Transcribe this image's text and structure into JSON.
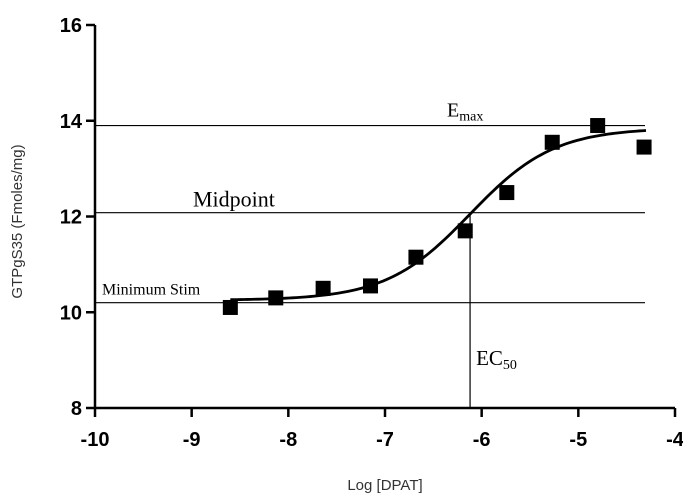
{
  "chart_data": {
    "type": "scatter",
    "xlabel": "Log [DPAT]",
    "ylabel": "GTPgS35 (Fmoles/mg)",
    "xlim": [
      -10,
      -4
    ],
    "ylim": [
      8,
      16
    ],
    "xticks": [
      -10,
      -9,
      -8,
      -7,
      -6,
      -5,
      -4
    ],
    "yticks": [
      8,
      10,
      12,
      14,
      16
    ],
    "grid": false,
    "points": [
      {
        "x": -8.6,
        "y": 10.1
      },
      {
        "x": -8.13,
        "y": 10.3
      },
      {
        "x": -7.64,
        "y": 10.5
      },
      {
        "x": -7.15,
        "y": 10.55
      },
      {
        "x": -6.68,
        "y": 11.15
      },
      {
        "x": -6.17,
        "y": 11.7
      },
      {
        "x": -5.74,
        "y": 12.5
      },
      {
        "x": -5.27,
        "y": 13.55
      },
      {
        "x": -4.8,
        "y": 13.9
      },
      {
        "x": -4.32,
        "y": 13.45
      }
    ],
    "fit_curve": {
      "model": "sigmoidal dose-response",
      "bottom": 10.25,
      "top": 13.85,
      "log_ec50": -6.12,
      "hill_slope": 1.0,
      "x_range": [
        -8.6,
        -4.3
      ]
    },
    "reference_lines": [
      {
        "label": "E",
        "subscript": "max",
        "y": 13.9
      },
      {
        "label": "Midpoint",
        "subscript": "",
        "y": 12.08
      },
      {
        "label": "Minimum Stim",
        "subscript": "",
        "y": 10.2
      }
    ],
    "ec50_line": {
      "label": "EC",
      "subscript": "50",
      "x": -6.12,
      "y_top": 12.08
    }
  }
}
